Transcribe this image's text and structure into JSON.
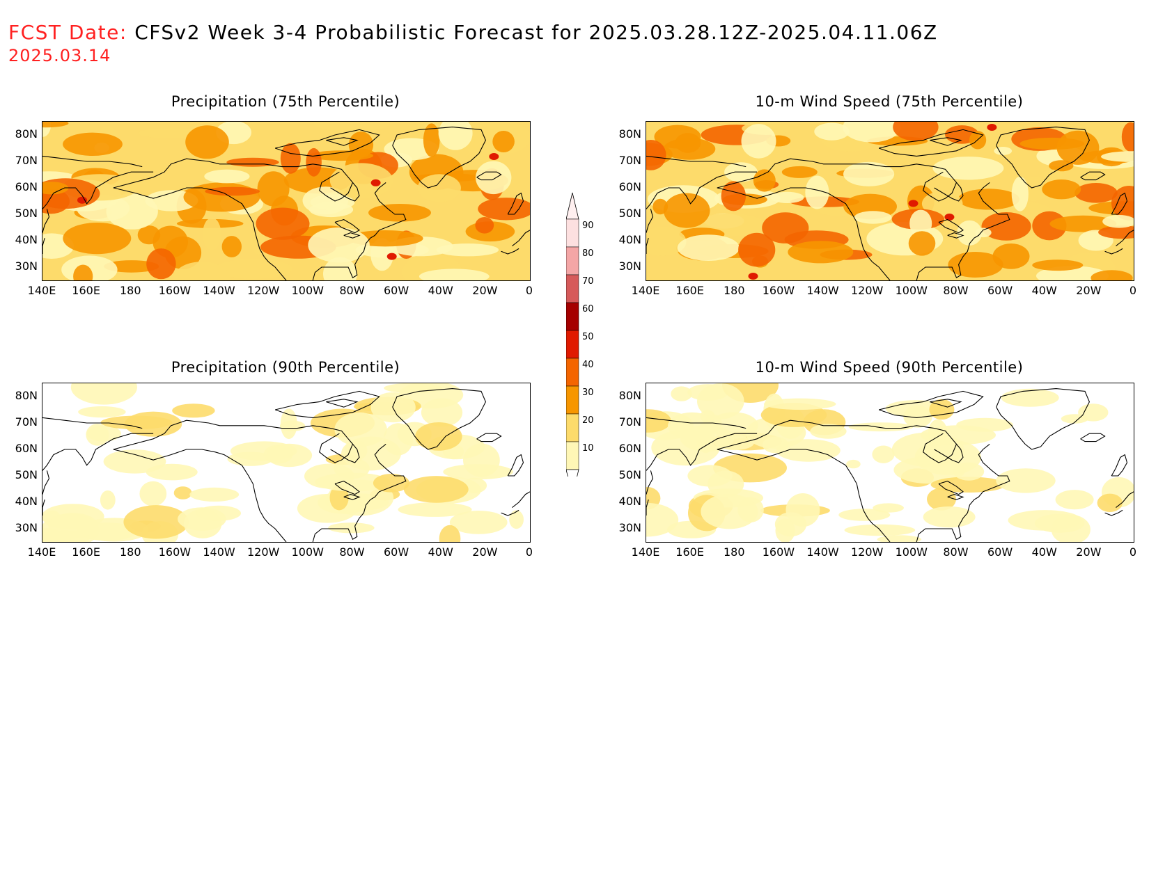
{
  "header": {
    "fcst_label": "FCST Date:",
    "title": "CFSv2 Week 3-4 Probabilistic Forecast for 2025.03.28.12Z-2025.04.11.06Z",
    "fcst_date": "2025.03.14"
  },
  "panels": [
    {
      "title": "Precipitation (75th Percentile)",
      "level": "high"
    },
    {
      "title": "10-m Wind Speed (75th Percentile)",
      "level": "high"
    },
    {
      "title": "Precipitation (90th Percentile)",
      "level": "low"
    },
    {
      "title": "10-m Wind Speed (90th Percentile)",
      "level": "low"
    }
  ],
  "lat_labels": [
    "80N",
    "70N",
    "60N",
    "50N",
    "40N",
    "30N"
  ],
  "lon_labels": [
    "140E",
    "160E",
    "180",
    "160W",
    "140W",
    "120W",
    "100W",
    "80W",
    "60W",
    "40W",
    "20W",
    "0"
  ],
  "colorbar": {
    "labels": [
      "90",
      "80",
      "70",
      "60",
      "50",
      "40",
      "30",
      "20",
      "10"
    ],
    "colors": [
      "#fde0e0",
      "#f4a6a6",
      "#d65a5a",
      "#a50000",
      "#e01a00",
      "#f46500",
      "#f79600",
      "#fddb6b",
      "#fff7b6"
    ]
  }
}
